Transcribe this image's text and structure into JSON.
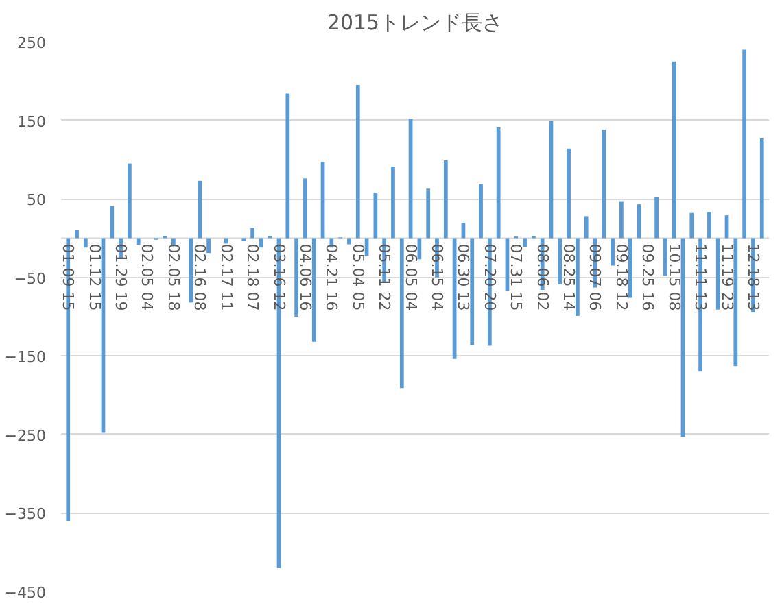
{
  "chart_data": {
    "type": "bar",
    "title": "2015トレンド長さ",
    "categories": [
      "01.09 15",
      null,
      null,
      "01.12 15",
      null,
      null,
      "01.29 19",
      null,
      null,
      "02.05 04",
      null,
      null,
      "02.05 18",
      null,
      null,
      "02.16 08",
      null,
      null,
      "02.17 11",
      null,
      null,
      "02.18 07",
      null,
      null,
      "03.16 12",
      null,
      null,
      "04.06 16",
      null,
      null,
      "04.21 16",
      null,
      null,
      "05.04 05",
      null,
      null,
      "05.11 22",
      null,
      null,
      "06.05 04",
      null,
      null,
      "06.15 04",
      null,
      null,
      "06.30 13",
      null,
      null,
      "07.20 20",
      null,
      null,
      "07.31 15",
      null,
      null,
      "08.06 02",
      null,
      null,
      "08.25 14",
      null,
      null,
      "09.07 06",
      null,
      null,
      "09.18 12",
      null,
      null,
      "09.25 16",
      null,
      null,
      "10.15 08",
      null,
      null,
      "11.11 13",
      null,
      null,
      "11.19 23",
      null,
      null,
      "12.18 13",
      null
    ],
    "values": [
      -360,
      10,
      -12,
      0,
      -248,
      41,
      -26,
      95,
      -9,
      0,
      -2,
      3,
      -9,
      0,
      -82,
      73,
      -19,
      0,
      -7,
      0,
      -4,
      13,
      -12,
      3,
      -420,
      184,
      -100,
      76,
      -132,
      97,
      -12,
      1,
      -8,
      195,
      -23,
      58,
      -56,
      91,
      -191,
      152,
      -27,
      63,
      -50,
      99,
      -154,
      19,
      -136,
      69,
      -137,
      141,
      -67,
      2,
      -11,
      3,
      -66,
      149,
      -59,
      114,
      -99,
      28,
      -63,
      138,
      -35,
      47,
      -76,
      43,
      0,
      52,
      -48,
      225,
      -253,
      32,
      -170,
      33,
      -91,
      29,
      -163,
      240,
      -94,
      127
    ],
    "color": "#5b9bd5",
    "ylim": [
      -450,
      250
    ],
    "yticks": [
      250,
      150,
      50,
      -50,
      -150,
      -250,
      -350,
      -450
    ],
    "grid": "y"
  }
}
